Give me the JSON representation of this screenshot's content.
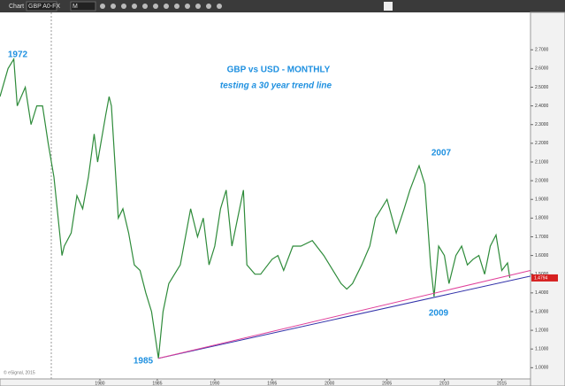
{
  "toolbar": {
    "app": "Chart",
    "symbol": "GBP A0-FX",
    "interval": "M"
  },
  "chart_data": {
    "type": "line",
    "title": "GBP vs USD - MONTHLY",
    "subtitle": "testing a 30 year trend line",
    "annotations": [
      "1972",
      "1985",
      "2007",
      "2009"
    ],
    "price_label": "1.4794",
    "copyright": "© eSignal, 2015",
    "x": [
      1971.3,
      1972.0,
      1972.5,
      1972.8,
      1973.5,
      1974.0,
      1974.5,
      1975.0,
      1975.5,
      1976.0,
      1976.7,
      1976.9,
      1977.5,
      1978.0,
      1978.5,
      1979.0,
      1979.5,
      1979.8,
      1980.5,
      1980.8,
      1981.0,
      1981.6,
      1982.0,
      1982.5,
      1983.0,
      1983.5,
      1984.0,
      1984.5,
      1985.1,
      1985.5,
      1986.0,
      1986.5,
      1987.0,
      1987.9,
      1988.5,
      1989.0,
      1989.5,
      1990.0,
      1990.5,
      1991.0,
      1991.5,
      1992.5,
      1992.8,
      1993.5,
      1994.0,
      1995.0,
      1995.5,
      1996.0,
      1996.8,
      1997.5,
      1998.5,
      1999.5,
      2000.5,
      2001.0,
      2001.5,
      2002.0,
      2002.8,
      2003.5,
      2004.0,
      2004.5,
      2005.0,
      2005.8,
      2006.5,
      2007.0,
      2007.8,
      2008.3,
      2008.8,
      2009.1,
      2009.5,
      2010.0,
      2010.4,
      2011.0,
      2011.5,
      2012.0,
      2012.5,
      2013.0,
      2013.5,
      2014.0,
      2014.5,
      2015.0,
      2015.5,
      2015.7
    ],
    "series": [
      {
        "name": "GBP A0-FX",
        "color": "#2e8b3a",
        "values": [
          2.45,
          2.6,
          2.65,
          2.4,
          2.5,
          2.3,
          2.4,
          2.4,
          2.2,
          2.02,
          1.6,
          1.65,
          1.72,
          1.92,
          1.85,
          2.02,
          2.25,
          2.1,
          2.35,
          2.45,
          2.4,
          1.8,
          1.85,
          1.72,
          1.55,
          1.52,
          1.4,
          1.3,
          1.05,
          1.3,
          1.45,
          1.5,
          1.55,
          1.85,
          1.7,
          1.8,
          1.55,
          1.65,
          1.85,
          1.95,
          1.65,
          1.95,
          1.55,
          1.5,
          1.5,
          1.58,
          1.6,
          1.52,
          1.65,
          1.65,
          1.68,
          1.6,
          1.5,
          1.45,
          1.42,
          1.45,
          1.55,
          1.65,
          1.8,
          1.85,
          1.9,
          1.72,
          1.85,
          1.95,
          2.08,
          1.98,
          1.55,
          1.38,
          1.65,
          1.6,
          1.45,
          1.6,
          1.65,
          1.55,
          1.58,
          1.6,
          1.5,
          1.65,
          1.71,
          1.52,
          1.56,
          1.48
        ]
      }
    ],
    "trend_lines": [
      {
        "color": "#3333aa",
        "x": [
          1985.1,
          2017.5
        ],
        "y": [
          1.05,
          1.49
        ]
      },
      {
        "color": "#e0409a",
        "x": [
          1985.1,
          2017.5
        ],
        "y": [
          1.05,
          1.52
        ]
      }
    ],
    "xlim": [
      1971.3,
      2017.5
    ],
    "xticks": [
      1980,
      1985,
      1990,
      1995,
      2000,
      2005,
      2010,
      2015
    ],
    "ylim": [
      0.94,
      2.9
    ],
    "yticks": [
      {
        "value": 1.0,
        "label": "1.0000"
      },
      {
        "value": 1.1,
        "label": "1.1000"
      },
      {
        "value": 1.2,
        "label": "1.2000"
      },
      {
        "value": 1.3,
        "label": "1.3000"
      },
      {
        "value": 1.4,
        "label": "1.4000"
      },
      {
        "value": 1.5,
        "label": "1.5000"
      },
      {
        "value": 1.6,
        "label": "1.6000"
      },
      {
        "value": 1.7,
        "label": "1.7000"
      },
      {
        "value": 1.8,
        "label": "1.8000"
      },
      {
        "value": 1.9,
        "label": "1.9000"
      },
      {
        "value": 2.0,
        "label": "2.0000"
      },
      {
        "value": 2.1,
        "label": "2.1000"
      },
      {
        "value": 2.2,
        "label": "2.2000"
      },
      {
        "value": 2.3,
        "label": "2.3000"
      },
      {
        "value": 2.4,
        "label": "2.4000"
      },
      {
        "value": 2.5,
        "label": "2.5000"
      },
      {
        "value": 2.6,
        "label": "2.6000"
      },
      {
        "value": 2.7,
        "label": "2.7000"
      }
    ],
    "grid": false
  }
}
